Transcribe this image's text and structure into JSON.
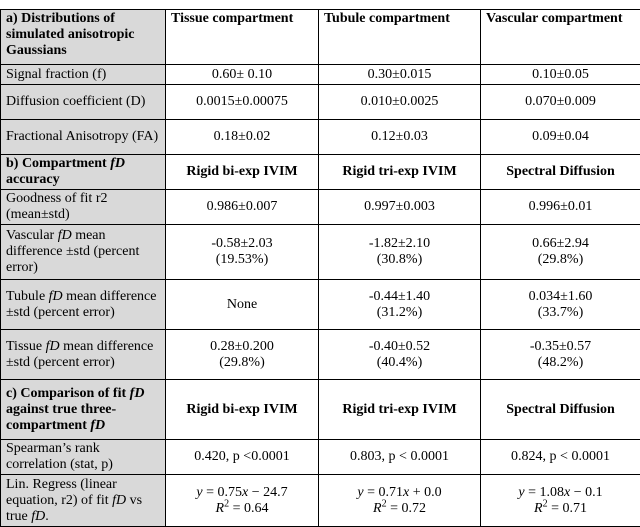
{
  "sections": [
    {
      "header": [
        "a) Distributions of simulated anisotropic Gaussians",
        "Tissue compartment",
        "Tubule compartment",
        "Vascular compartment"
      ],
      "rows": [
        [
          "Signal fraction (f)",
          "0.60± 0.10",
          "0.30±0.015",
          "0.10±0.05"
        ],
        [
          "Diffusion coefficient (D)",
          "0.0015±0.00075",
          "0.010±0.0025",
          "0.070±0.009"
        ],
        [
          "Fractional Anisotropy (FA)",
          "0.18±0.02",
          "0.12±0.03",
          "0.09±0.04"
        ]
      ]
    },
    {
      "header": [
        [
          {
            "text": "b) Compartment "
          },
          {
            "text": "fD",
            "style": "italic"
          },
          {
            "text": " accuracy"
          }
        ],
        "Rigid bi-exp IVIM",
        "Rigid tri-exp IVIM",
        "Spectral Diffusion"
      ],
      "rows": [
        [
          "Goodness of fit r2 (mean±std)",
          "0.986±0.007",
          "0.997±0.003",
          "0.996±0.01"
        ],
        [
          [
            {
              "text": "Vascular "
            },
            {
              "text": "fD",
              "style": "italic"
            },
            {
              "text": " mean difference ±std (percent error)"
            }
          ],
          "-0.58±2.03\n(19.53%)",
          "-1.82±2.10\n(30.8%)",
          "0.66±2.94\n(29.8%)"
        ],
        [
          [
            {
              "text": "Tubule "
            },
            {
              "text": "fD",
              "style": "italic"
            },
            {
              "text": " mean difference ±std (percent error)"
            }
          ],
          "None",
          "-0.44±1.40\n(31.2%)",
          "0.034±1.60\n(33.7%)"
        ],
        [
          [
            {
              "text": "Tissue "
            },
            {
              "text": "fD",
              "style": "italic"
            },
            {
              "text": " mean difference ±std (percent error)"
            }
          ],
          "0.28±0.200\n(29.8%)",
          "-0.40±0.52\n(40.4%)",
          "-0.35±0.57\n(48.2%)"
        ]
      ]
    },
    {
      "header": [
        [
          {
            "text": "c) Comparison of fit "
          },
          {
            "text": "fD",
            "style": "italic"
          },
          {
            "text": " against true three-compartment "
          },
          {
            "text": "fD",
            "style": "italic"
          }
        ],
        "Rigid bi-exp IVIM",
        "Rigid tri-exp IVIM",
        "Spectral Diffusion"
      ],
      "rows": [
        [
          "Spearman’s rank correlation (stat, p)",
          "0.420, p <0.0001",
          "0.803, p < 0.0001",
          "0.824, p < 0.0001"
        ],
        [
          [
            {
              "text": "Lin. Regress (linear equation, r2) of fit "
            },
            {
              "text": "fD",
              "style": "italic"
            },
            {
              "text": " vs true "
            },
            {
              "text": "fD",
              "style": "italic"
            },
            {
              "text": "."
            }
          ],
          [
            {
              "text": "y",
              "style": "italic"
            },
            {
              "text": " = 0.75"
            },
            {
              "text": "x",
              "style": "italic"
            },
            {
              "text": " − 24.7\n"
            },
            {
              "text": "R",
              "style": "italic"
            },
            {
              "text": "2",
              "style": "sup"
            },
            {
              "text": " = 0.64"
            }
          ],
          [
            {
              "text": "y",
              "style": "italic"
            },
            {
              "text": " = 0.71"
            },
            {
              "text": "x",
              "style": "italic"
            },
            {
              "text": " + 0.0\n"
            },
            {
              "text": "R",
              "style": "italic"
            },
            {
              "text": "2",
              "style": "sup"
            },
            {
              "text": " = 0.72"
            }
          ],
          [
            {
              "text": "y",
              "style": "italic"
            },
            {
              "text": " = 1.08"
            },
            {
              "text": "x",
              "style": "italic"
            },
            {
              "text": " − 0.1\n"
            },
            {
              "text": "R",
              "style": "italic"
            },
            {
              "text": "2",
              "style": "sup"
            },
            {
              "text": " = 0.71"
            }
          ]
        ]
      ]
    }
  ]
}
